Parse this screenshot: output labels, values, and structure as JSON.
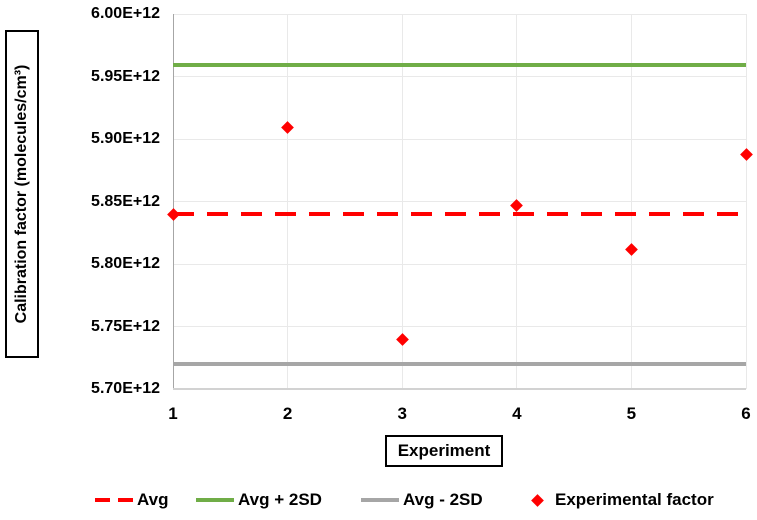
{
  "chart_data": {
    "type": "scatter",
    "title": "",
    "xlabel": "Experiment",
    "ylabel": "Calibration factor (molecules/cm³)",
    "xlim": [
      1,
      6
    ],
    "ylim_e12": [
      5.7,
      6.0
    ],
    "grid": true,
    "x_ticks": [
      {
        "value": 1,
        "label": "1"
      },
      {
        "value": 2,
        "label": "2"
      },
      {
        "value": 3,
        "label": "3"
      },
      {
        "value": 4,
        "label": "4"
      },
      {
        "value": 5,
        "label": "5"
      },
      {
        "value": 6,
        "label": "6"
      }
    ],
    "y_ticks": [
      {
        "value_e12": 6.0,
        "label": "6.00E+12"
      },
      {
        "value_e12": 5.95,
        "label": "5.95E+12"
      },
      {
        "value_e12": 5.9,
        "label": "5.90E+12"
      },
      {
        "value_e12": 5.85,
        "label": "5.85E+12"
      },
      {
        "value_e12": 5.8,
        "label": "5.80E+12"
      },
      {
        "value_e12": 5.75,
        "label": "5.75E+12"
      },
      {
        "value_e12": 5.7,
        "label": "5.70E+12"
      }
    ],
    "series": [
      {
        "name": "Experimental factor",
        "marker": "diamond",
        "color": "#FF0000",
        "x": [
          1,
          2,
          3,
          4,
          5,
          6
        ],
        "values_e12": [
          5.84,
          5.909,
          5.74,
          5.847,
          5.812,
          5.888
        ]
      }
    ],
    "reference_lines": [
      {
        "name": "Avg",
        "value_e12": 5.84,
        "style": "dashed",
        "color": "#FF0000"
      },
      {
        "name": "Avg + 2SD",
        "value_e12": 5.959,
        "style": "solid",
        "color": "#70AD47"
      },
      {
        "name": "Avg - 2SD",
        "value_e12": 5.72,
        "style": "solid",
        "color": "#A6A6A6"
      }
    ],
    "legend": {
      "position": "bottom",
      "items": [
        {
          "label": "Avg",
          "swatch": "dashed-line",
          "color": "#FF0000"
        },
        {
          "label": "Avg + 2SD",
          "swatch": "line",
          "color": "#70AD47"
        },
        {
          "label": "Avg - 2SD",
          "swatch": "line",
          "color": "#A6A6A6"
        },
        {
          "label": "Experimental factor",
          "swatch": "diamond",
          "color": "#FF0000"
        }
      ]
    }
  },
  "colors": {
    "point": "#FF0000",
    "avg_line": "#FF0000",
    "avg_plus_2sd_line": "#70AD47",
    "avg_minus_2sd_line": "#A6A6A6",
    "gridline": "#E9E9E9",
    "y_axis_line": "#A6A6A6",
    "x_axis_line": "#D2D2D2",
    "text": "#000000"
  }
}
